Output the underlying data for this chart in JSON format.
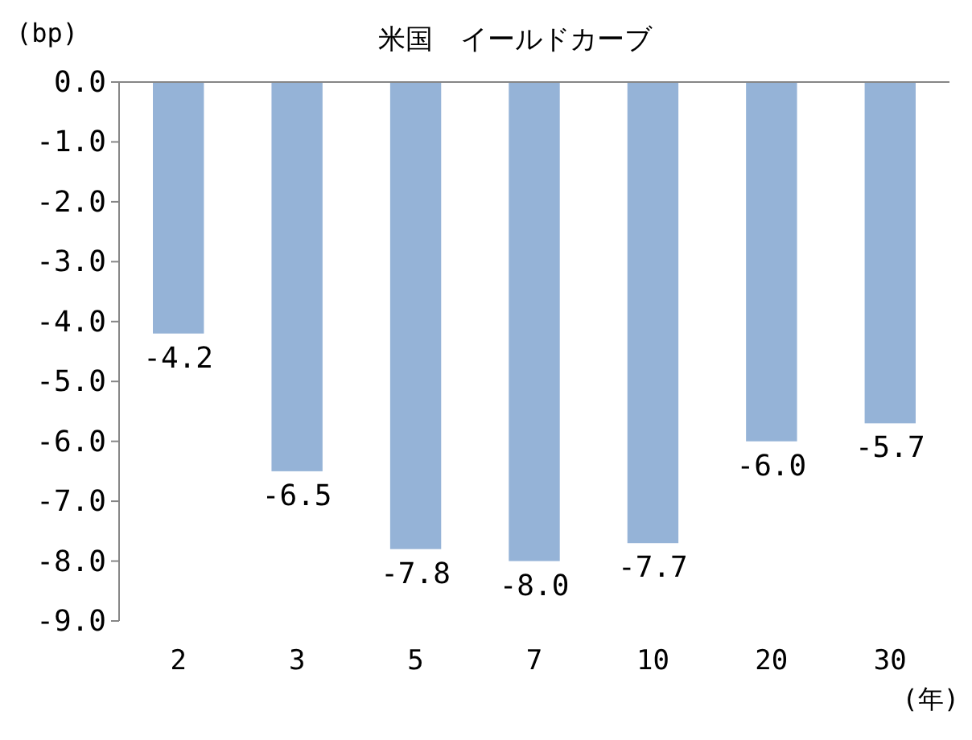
{
  "chart_data": {
    "type": "bar",
    "title": "米国　イールドカーブ",
    "ylabel": "(bp)",
    "xlabel": "(年)",
    "categories": [
      "2",
      "3",
      "5",
      "7",
      "10",
      "20",
      "30"
    ],
    "values": [
      -4.2,
      -6.5,
      -7.8,
      -8.0,
      -7.7,
      -6.0,
      -5.7
    ],
    "value_labels": [
      "-4.2",
      "-6.5",
      "-7.8",
      "-8.0",
      "-7.7",
      "-6.0",
      "-5.7"
    ],
    "color": "#95b3d7",
    "ylim": [
      -9,
      0
    ],
    "yticks": [
      {
        "value": 0,
        "label": "0.0"
      },
      {
        "value": -1,
        "label": "-1.0"
      },
      {
        "value": -2,
        "label": "-2.0"
      },
      {
        "value": -3,
        "label": "-3.0"
      },
      {
        "value": -4,
        "label": "-4.0"
      },
      {
        "value": -5,
        "label": "-5.0"
      },
      {
        "value": -6,
        "label": "-6.0"
      },
      {
        "value": -7,
        "label": "-7.0"
      },
      {
        "value": -8,
        "label": "-8.0"
      },
      {
        "value": -9,
        "label": "-9.0"
      }
    ],
    "grid": false
  }
}
